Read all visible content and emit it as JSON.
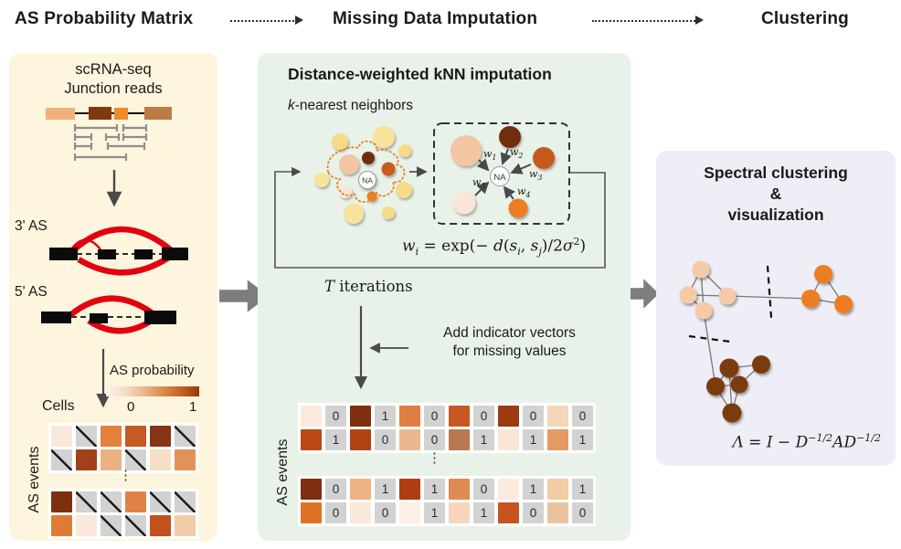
{
  "colors": {
    "left_panel_bg": "#fdf5dd",
    "middle_panel_bg": "#e9f2e9",
    "right_panel_bg": "#efedf5",
    "heat_min": "#fbeadd",
    "heat_max": "#7e2f0d",
    "splice_arc_red": "#e3000f",
    "na_gray": "#d2d2d2",
    "flow_arrow_gray": "#7d7d7d",
    "node_peach": "#f3c5a2",
    "node_orange": "#ed7d23",
    "node_brown": "#7a3a10",
    "node_yellow": "#f6da85"
  },
  "header": {
    "step1": "AS Probability Matrix",
    "step2": "Missing Data Imputation",
    "step3": "Clustering"
  },
  "left": {
    "subtitle1": "scRNA-seq",
    "subtitle2": "Junction reads",
    "as3": "3' AS",
    "as5": "5' AS",
    "prob_label": "AS probability",
    "scale_min": "0",
    "scale_max": "1",
    "cells": "Cells",
    "events": "AS events",
    "dots": "⋮",
    "matrix_top": [
      [
        "#fae8dc",
        "NA",
        "#e2803c",
        "#c55a22",
        "#873412",
        "NA"
      ],
      [
        "NA",
        "#a2401a",
        "#ebb183",
        "NA",
        "#f6dfc4",
        "#e29158"
      ]
    ],
    "matrix_bottom": [
      [
        "#7e2f0d",
        "NA",
        "NA",
        "#e0814a",
        "NA",
        "NA"
      ],
      [
        "#de7c35",
        "#fae8dc",
        "NA",
        "NA",
        "#c2511d",
        "#f0cca8"
      ]
    ]
  },
  "middle": {
    "title": "Distance-weighted kNN imputation",
    "knn_k": "k",
    "knn_rest": "-nearest neighbors",
    "na_label": "NA",
    "weights": [
      {
        "b": "w",
        "s": "1"
      },
      {
        "b": "w",
        "s": "2"
      },
      {
        "b": "w",
        "s": "3"
      },
      {
        "b": "w",
        "s": "4"
      },
      {
        "b": "w",
        "s": "5"
      }
    ],
    "formula": {
      "w": "w",
      "w_sub": "i",
      "a": " = exp(− ",
      "d": "d",
      "b": "(",
      "s1": "s",
      "s1_sub": "i",
      "c": ", ",
      "s2": "s",
      "s2_sub": "j",
      "e": ")/2",
      "sg": "σ",
      "sq": "2",
      "f": ")"
    },
    "iter_T": "T",
    "iter_rest": " iterations",
    "note1": "Add indicator vectors",
    "note2": "for missing values",
    "events": "AS events",
    "dots": "⋮",
    "matrix_top": [
      [
        {
          "c": "#fbe9dc",
          "v": "0"
        },
        {
          "c": "#7e2f0d",
          "v": "1"
        },
        {
          "c": "#e07e41",
          "v": "0"
        },
        {
          "c": "#c65722",
          "v": "0"
        },
        {
          "c": "#9c3a10",
          "v": "0"
        },
        {
          "c": "#f5d5b8",
          "v": "0"
        }
      ],
      [
        {
          "c": "#bc4817",
          "v": "1"
        },
        {
          "c": "#b04214",
          "v": "0"
        },
        {
          "c": "#ebb88e",
          "v": "0"
        },
        {
          "c": "#b87950",
          "v": "1"
        },
        {
          "c": "#f9e6d4",
          "v": "1"
        },
        {
          "c": "#e59a64",
          "v": "1"
        }
      ]
    ],
    "matrix_bottom": [
      [
        {
          "c": "#7e2f0d",
          "v": "0"
        },
        {
          "c": "#efb285",
          "v": "1"
        },
        {
          "c": "#ae3d12",
          "v": "1"
        },
        {
          "c": "#de8a52",
          "v": "0"
        },
        {
          "c": "#fbeadf",
          "v": "1"
        },
        {
          "c": "#f3cba4",
          "v": "1"
        }
      ],
      [
        {
          "c": "#de7325",
          "v": "0"
        },
        {
          "c": "#fae8d8",
          "v": "0"
        },
        {
          "c": "#fcefe4",
          "v": "1"
        },
        {
          "c": "#f6d7bc",
          "v": "1"
        },
        {
          "c": "#c65320",
          "v": "0"
        },
        {
          "c": "#e9c39e",
          "v": "0"
        }
      ]
    ]
  },
  "right": {
    "title1": "Spectral clustering",
    "title2": "&",
    "title3": "visualization",
    "formula": {
      "l": "Λ",
      "a": " = ",
      "I": "I",
      "b": " − ",
      "D1": "D",
      "e1": "−1/2",
      "A": "A",
      "D2": "D",
      "e2": "−1/2"
    }
  }
}
